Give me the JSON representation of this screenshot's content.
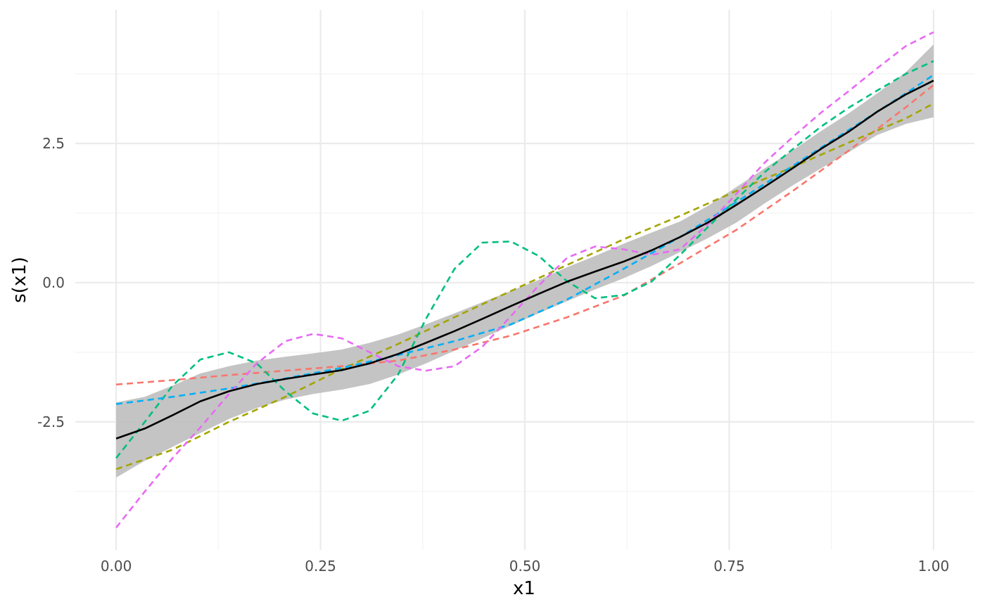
{
  "chart_data": {
    "type": "line",
    "xlabel": "x1",
    "ylabel": "s(x1)",
    "xlim": [
      -0.05,
      1.05
    ],
    "ylim": [
      -4.8,
      4.9
    ],
    "x_ticks": [
      0.0,
      0.25,
      0.5,
      0.75,
      1.0
    ],
    "x_tick_labels": [
      "0.00",
      "0.25",
      "0.50",
      "0.75",
      "1.00"
    ],
    "y_ticks": [
      -2.5,
      0.0,
      2.5
    ],
    "y_tick_labels": [
      "-2.5",
      "0.0",
      "2.5"
    ],
    "grid": true,
    "band": {
      "color": "#bebebe",
      "x": [
        0.0,
        0.035,
        0.069,
        0.103,
        0.138,
        0.172,
        0.207,
        0.241,
        0.276,
        0.31,
        0.345,
        0.379,
        0.414,
        0.448,
        0.483,
        0.517,
        0.552,
        0.586,
        0.621,
        0.655,
        0.69,
        0.724,
        0.759,
        0.793,
        0.828,
        0.862,
        0.897,
        0.931,
        0.966,
        1.0
      ],
      "lower": [
        -3.5,
        -3.2,
        -2.95,
        -2.7,
        -2.45,
        -2.25,
        -2.1,
        -2.0,
        -1.92,
        -1.82,
        -1.65,
        -1.45,
        -1.22,
        -1.0,
        -0.77,
        -0.55,
        -0.33,
        -0.12,
        0.08,
        0.3,
        0.55,
        0.8,
        1.08,
        1.42,
        1.75,
        2.05,
        2.35,
        2.65,
        2.85,
        2.97
      ],
      "upper": [
        -2.15,
        -2.05,
        -1.85,
        -1.63,
        -1.5,
        -1.4,
        -1.33,
        -1.27,
        -1.2,
        -1.08,
        -0.93,
        -0.75,
        -0.55,
        -0.35,
        -0.15,
        0.05,
        0.28,
        0.48,
        0.7,
        0.9,
        1.1,
        1.38,
        1.72,
        2.05,
        2.38,
        2.72,
        3.05,
        3.4,
        3.78,
        4.28
      ]
    },
    "series": [
      {
        "color": "#000000",
        "dash": "solid",
        "x": [
          0.0,
          0.035,
          0.069,
          0.103,
          0.138,
          0.172,
          0.207,
          0.241,
          0.276,
          0.31,
          0.345,
          0.379,
          0.414,
          0.448,
          0.483,
          0.517,
          0.552,
          0.586,
          0.621,
          0.655,
          0.69,
          0.724,
          0.759,
          0.793,
          0.828,
          0.862,
          0.897,
          0.931,
          0.966,
          1.0
        ],
        "y": [
          -2.8,
          -2.62,
          -2.38,
          -2.13,
          -1.95,
          -1.82,
          -1.73,
          -1.65,
          -1.57,
          -1.45,
          -1.28,
          -1.08,
          -0.87,
          -0.65,
          -0.42,
          -0.2,
          0.02,
          0.2,
          0.38,
          0.58,
          0.82,
          1.08,
          1.4,
          1.72,
          2.06,
          2.4,
          2.72,
          3.07,
          3.38,
          3.63
        ]
      },
      {
        "color": "#F8766D",
        "dash": "dashed",
        "x": [
          0.0,
          0.069,
          0.138,
          0.207,
          0.276,
          0.345,
          0.414,
          0.483,
          0.552,
          0.621,
          0.69,
          0.759,
          0.828,
          0.897,
          0.966,
          1.0
        ],
        "y": [
          -1.83,
          -1.75,
          -1.66,
          -1.58,
          -1.5,
          -1.4,
          -1.2,
          -0.95,
          -0.62,
          -0.23,
          0.35,
          0.95,
          1.65,
          2.38,
          3.15,
          3.55
        ]
      },
      {
        "color": "#A3A500",
        "dash": "dashed",
        "x": [
          0.0,
          0.069,
          0.138,
          0.207,
          0.276,
          0.345,
          0.414,
          0.483,
          0.552,
          0.621,
          0.69,
          0.759,
          0.828,
          0.897,
          0.966,
          1.0
        ],
        "y": [
          -3.35,
          -3.0,
          -2.5,
          -2.05,
          -1.55,
          -1.1,
          -0.62,
          -0.15,
          0.32,
          0.78,
          1.2,
          1.65,
          2.08,
          2.52,
          2.95,
          3.22
        ]
      },
      {
        "color": "#00BF7D",
        "dash": "dashed",
        "x": [
          0.0,
          0.035,
          0.069,
          0.103,
          0.138,
          0.172,
          0.207,
          0.241,
          0.276,
          0.31,
          0.345,
          0.379,
          0.414,
          0.448,
          0.483,
          0.517,
          0.552,
          0.586,
          0.621,
          0.655,
          0.69,
          0.724,
          0.759,
          0.793,
          0.828,
          0.862,
          0.897,
          0.931,
          0.966,
          1.0
        ],
        "y": [
          -3.15,
          -2.5,
          -1.85,
          -1.38,
          -1.25,
          -1.45,
          -1.95,
          -2.35,
          -2.48,
          -2.3,
          -1.65,
          -0.65,
          0.25,
          0.72,
          0.74,
          0.48,
          0.02,
          -0.28,
          -0.22,
          0.02,
          0.5,
          1.0,
          1.5,
          1.98,
          2.4,
          2.8,
          3.15,
          3.45,
          3.75,
          3.98
        ]
      },
      {
        "color": "#00B0F6",
        "dash": "dashed",
        "x": [
          0.0,
          0.069,
          0.138,
          0.207,
          0.276,
          0.345,
          0.414,
          0.483,
          0.552,
          0.621,
          0.69,
          0.759,
          0.828,
          0.897,
          0.966,
          1.0
        ],
        "y": [
          -2.18,
          -2.05,
          -1.9,
          -1.72,
          -1.53,
          -1.3,
          -1.05,
          -0.75,
          -0.3,
          0.25,
          0.82,
          1.45,
          2.1,
          2.75,
          3.4,
          3.73
        ]
      },
      {
        "color": "#E76BF3",
        "dash": "dashed",
        "x": [
          0.0,
          0.035,
          0.069,
          0.103,
          0.138,
          0.172,
          0.207,
          0.241,
          0.276,
          0.31,
          0.345,
          0.379,
          0.414,
          0.448,
          0.483,
          0.517,
          0.552,
          0.586,
          0.621,
          0.655,
          0.69,
          0.724,
          0.759,
          0.793,
          0.828,
          0.862,
          0.897,
          0.931,
          0.966,
          1.0
        ],
        "y": [
          -4.4,
          -3.75,
          -3.15,
          -2.6,
          -2.0,
          -1.45,
          -1.05,
          -0.92,
          -1.0,
          -1.25,
          -1.5,
          -1.58,
          -1.5,
          -1.15,
          -0.6,
          -0.05,
          0.45,
          0.65,
          0.6,
          0.5,
          0.6,
          1.05,
          1.6,
          2.15,
          2.62,
          3.05,
          3.45,
          3.85,
          4.25,
          4.5
        ]
      }
    ]
  }
}
